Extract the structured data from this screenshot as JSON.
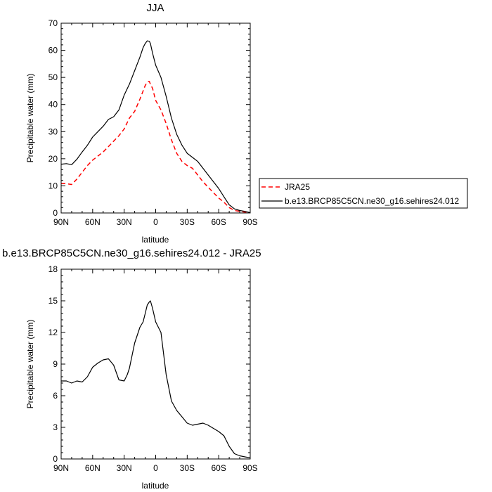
{
  "chart_data": [
    {
      "type": "line",
      "title": "JJA",
      "xlabel": "latitude",
      "ylabel": "Precipitable water (mm)",
      "x_tick_labels": [
        "90N",
        "60N",
        "30N",
        "0",
        "30S",
        "60S",
        "90S"
      ],
      "x_ticks": [
        -90,
        -60,
        -30,
        0,
        30,
        60,
        90
      ],
      "xlim": [
        -90,
        90
      ],
      "ylim": [
        0,
        70
      ],
      "y_ticks": [
        0,
        10,
        20,
        30,
        40,
        50,
        60,
        70
      ],
      "grid": false,
      "legend_placement": "right, outside",
      "x": [
        -90,
        -85,
        -80,
        -75,
        -70,
        -65,
        -60,
        -55,
        -50,
        -45,
        -40,
        -35,
        -30,
        -25,
        -20,
        -15,
        -12,
        -10,
        -8,
        -6,
        -5,
        -3,
        0,
        5,
        10,
        15,
        20,
        25,
        30,
        35,
        40,
        45,
        50,
        55,
        60,
        65,
        70,
        75,
        80,
        85,
        90
      ],
      "series": [
        {
          "name": "JRA25",
          "color": "#ff0000",
          "dash": "dashed",
          "values": [
            10.8,
            10.8,
            10.5,
            12.5,
            15,
            17.5,
            19.5,
            21,
            22.5,
            24.5,
            26.5,
            28.5,
            31,
            35,
            37.5,
            42,
            45,
            47,
            48.3,
            48.5,
            47.5,
            46,
            41.5,
            38,
            33,
            27,
            22,
            19,
            17.5,
            16.5,
            14,
            11.5,
            9.5,
            7.5,
            5.5,
            4,
            2,
            0.9,
            0.6,
            0.3,
            0.1
          ]
        },
        {
          "name": "b.e13.BRCP85C5CN.ne30_g16.sehires24.012",
          "color": "#000000",
          "dash": "solid",
          "values": [
            18,
            18.2,
            17.8,
            19.8,
            22.5,
            25,
            28,
            30,
            32,
            34.5,
            35.5,
            38,
            43.5,
            47.5,
            52.5,
            57.5,
            61,
            62.5,
            63.5,
            63.3,
            62.5,
            59,
            54.5,
            50,
            43,
            35,
            29,
            25,
            22,
            20.5,
            19,
            16.5,
            14,
            11.5,
            9,
            6,
            3,
            1.5,
            0.9,
            0.6,
            0.1
          ]
        }
      ]
    },
    {
      "type": "line",
      "title": "b.e13.BRCP85C5CN.ne30_g16.sehires24.012 - JRA25",
      "xlabel": "latitude",
      "ylabel": "Precipitable water (mm)",
      "x_tick_labels": [
        "90N",
        "60N",
        "30N",
        "0",
        "30S",
        "60S",
        "90S"
      ],
      "x_ticks": [
        -90,
        -60,
        -30,
        0,
        30,
        60,
        90
      ],
      "xlim": [
        -90,
        90
      ],
      "ylim": [
        0,
        18
      ],
      "y_ticks": [
        0,
        3,
        6,
        9,
        12,
        15,
        18
      ],
      "grid": false,
      "x": [
        -90,
        -85,
        -80,
        -75,
        -70,
        -65,
        -60,
        -55,
        -50,
        -45,
        -40,
        -35,
        -30,
        -27,
        -25,
        -20,
        -15,
        -12,
        -10,
        -8,
        -6,
        -5,
        -3,
        0,
        5,
        10,
        15,
        20,
        25,
        30,
        35,
        40,
        45,
        50,
        55,
        60,
        65,
        70,
        75,
        80,
        85,
        90
      ],
      "series": [
        {
          "name": "",
          "color": "#000000",
          "dash": "solid",
          "values": [
            7.4,
            7.4,
            7.2,
            7.4,
            7.3,
            7.8,
            8.7,
            9.1,
            9.4,
            9.5,
            8.9,
            7.5,
            7.4,
            8.0,
            8.6,
            11.0,
            12.5,
            13.0,
            13.8,
            14.6,
            14.9,
            15.0,
            14.3,
            13.0,
            12.0,
            8.0,
            5.5,
            4.6,
            4.0,
            3.4,
            3.2,
            3.3,
            3.4,
            3.2,
            2.9,
            2.6,
            2.2,
            1.2,
            0.5,
            0.3,
            0.2,
            0.1
          ]
        }
      ]
    }
  ]
}
